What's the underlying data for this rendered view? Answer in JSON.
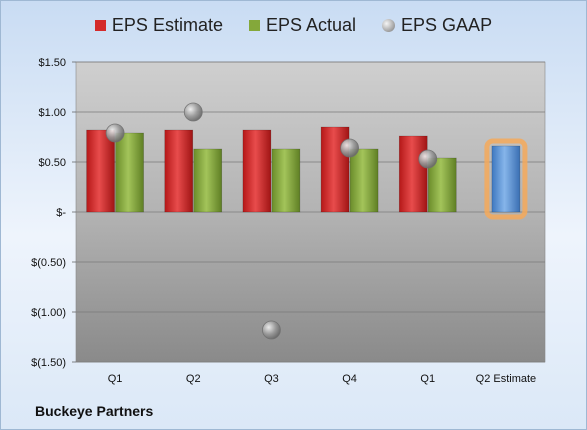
{
  "chart_data": {
    "type": "bar",
    "categories": [
      "Q1",
      "Q2",
      "Q3",
      "Q4",
      "Q1",
      "Q2 Estimate"
    ],
    "series": [
      {
        "name": "EPS Estimate",
        "type": "bar",
        "color": "#d42a2a",
        "values": [
          0.82,
          0.82,
          0.82,
          0.85,
          0.76,
          null
        ]
      },
      {
        "name": "EPS Actual",
        "type": "bar",
        "color": "#84a83a",
        "values": [
          0.79,
          0.63,
          0.63,
          0.63,
          0.54,
          null
        ]
      },
      {
        "name": "EPS GAAP",
        "type": "scatter",
        "color": "#a0a0a0",
        "values": [
          0.79,
          1.0,
          -1.18,
          0.64,
          0.53,
          null
        ]
      },
      {
        "name": "",
        "type": "bar",
        "color": "#5b93d4",
        "highlight": "#f5a95a",
        "values": [
          null,
          null,
          null,
          null,
          null,
          0.66
        ]
      }
    ],
    "ylim": [
      -1.5,
      1.5
    ],
    "yticks": [
      1.5,
      1.0,
      0.5,
      0,
      -0.5,
      -1.0,
      -1.5
    ],
    "ytick_labels": [
      "$1.50",
      "$1.00",
      "$0.50",
      "$-",
      "$(0.50)",
      "$(1.00)",
      "$(1.50)"
    ],
    "legend_position": "top",
    "grid": true
  },
  "footer": {
    "company": "Buckeye Partners"
  }
}
